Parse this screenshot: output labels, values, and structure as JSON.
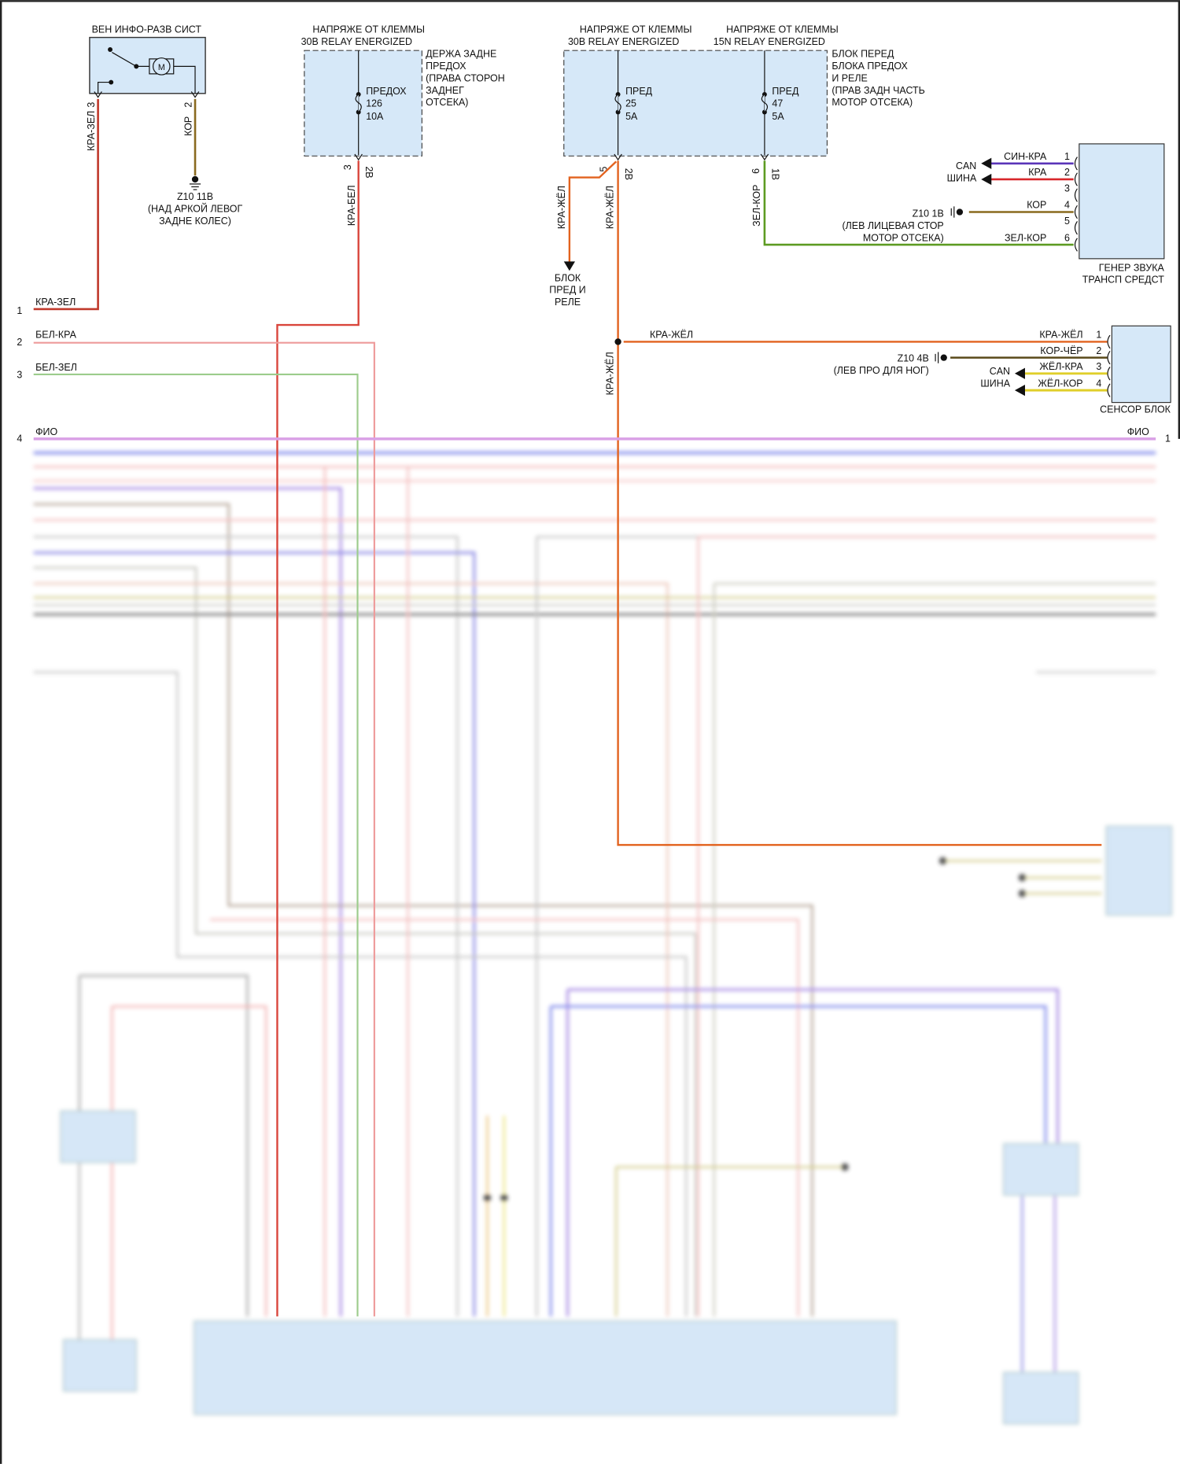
{
  "colors": {
    "component_fill": "#d6e8f8",
    "red_green": "#c0392b",
    "red_white": "#d9453b",
    "pink": "#ee9a9a",
    "light_green": "#9ccc8c",
    "orange": "#e2621e",
    "green_brown": "#5d9b22",
    "brown": "#8a6a1f",
    "blue_red": "#5a34b8",
    "red": "#d8262a",
    "yellow": "#e0cf2a"
  },
  "components": {
    "infotainment": {
      "title": "ВЕН ИНФО-РАЗВ СИСТ",
      "motor_symbol": "M",
      "pin_a": "3",
      "pin_b": "2",
      "wire_a": "КРА-ЗЕЛ",
      "wire_b": "КОР",
      "ground": [
        "Z10 11В",
        "(НАД АРКОЙ ЛЕВОГ",
        "ЗАДНЕ КОЛЕС)"
      ]
    },
    "rear_fuse_holder": {
      "title": [
        "НАПРЯЖЕ ОТ КЛЕММЫ",
        "30В RELAY ENERGIZED"
      ],
      "fuse": [
        "ПРЕДОХ",
        "126",
        "10А"
      ],
      "location": [
        "ДЕРЖА ЗАДНЕ",
        "ПРЕДОХ",
        "(ПРАВА СТОРОН",
        "ЗАДНЕГ",
        "ОТСЕКА)"
      ],
      "pin": "3",
      "connector": "2В",
      "wire": "КРА-БЕЛ"
    },
    "front_fuse_box": {
      "title_left": [
        "НАПРЯЖЕ ОТ КЛЕММЫ",
        "30В RELAY ENERGIZED"
      ],
      "title_right": [
        "НАПРЯЖЕ ОТ КЛЕММЫ",
        "15N RELAY ENERGIZED"
      ],
      "fuse_left": [
        "ПРЕД",
        "25",
        "5А"
      ],
      "fuse_right": [
        "ПРЕД",
        "47",
        "5А"
      ],
      "location": [
        "БЛОК ПЕРЕД",
        "БЛОКА ПРЕДОХ",
        "И РЕЛЕ",
        "(ПРАВ ЗАДН ЧАСТЬ",
        "МОТОР ОТСЕКА)"
      ],
      "pin_left": "5",
      "connector_left": "2В",
      "pin_right": "6",
      "connector_right": "1В",
      "wire_branch": "КРА-ЖЁЛ",
      "wire_main": "КРА-ЖЁЛ",
      "wire_right": "ЗЕЛ-КОР",
      "branch_target": [
        "БЛОК",
        "ПРЕД И",
        "РЕЛЕ"
      ]
    },
    "sound_generator": {
      "label": [
        "ГЕНЕР ЗВУКА",
        "ТРАНСП СРЕДСТ"
      ],
      "pins": [
        {
          "num": "1",
          "wire": "СИН-КРА"
        },
        {
          "num": "2",
          "wire": "КРА"
        },
        {
          "num": "3",
          "wire": ""
        },
        {
          "num": "4",
          "wire": "КОР"
        },
        {
          "num": "5",
          "wire": ""
        },
        {
          "num": "6",
          "wire": "ЗЕЛ-КОР"
        }
      ],
      "can": [
        "CAN",
        "ШИНА"
      ],
      "ground": [
        "Z10 1В",
        "(ЛЕВ ЛИЦЕВАЯ СТОР",
        "МОТОР ОТСЕКА)"
      ]
    },
    "sensor_unit": {
      "label": "СЕНСОР БЛОК",
      "pins": [
        {
          "num": "1",
          "wire": "КРА-ЖЁЛ"
        },
        {
          "num": "2",
          "wire": "КОР-ЧЁР"
        },
        {
          "num": "3",
          "wire": "ЖЁЛ-КРА"
        },
        {
          "num": "4",
          "wire": "ЖЁЛ-КОР"
        }
      ],
      "can": [
        "CAN",
        "ШИНА"
      ],
      "ground": [
        "Z10 4В",
        "(ЛЕВ ПРО ДЛЯ НОГ)"
      ],
      "feed_wire": "КРА-ЖЁЛ"
    }
  },
  "left_terminals": [
    {
      "num": "1",
      "wire": "КРА-ЗЕЛ"
    },
    {
      "num": "2",
      "wire": "БЕЛ-КРА"
    },
    {
      "num": "3",
      "wire": "БЕЛ-ЗЕЛ"
    },
    {
      "num": "4",
      "wire": "ФИО"
    }
  ],
  "right_terminal": {
    "num": "1",
    "wire": "ФИО"
  }
}
